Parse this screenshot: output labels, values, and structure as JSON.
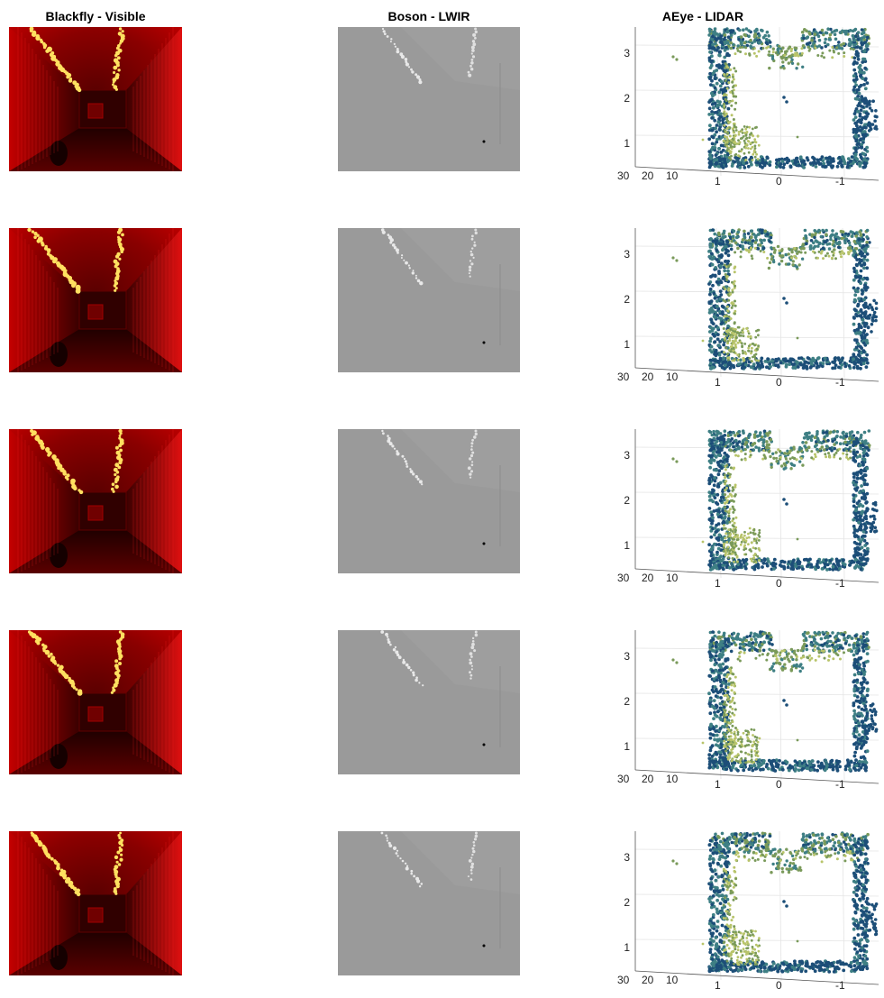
{
  "columns": [
    {
      "title": "Blackfly - Visible"
    },
    {
      "title": "Boson - LWIR"
    },
    {
      "title": "AEye - LIDAR"
    }
  ],
  "lidar_axes": {
    "z_ticks": [
      "3",
      "2",
      "1"
    ],
    "depth_ticks": [
      "30",
      "20",
      "10"
    ],
    "lateral_ticks": [
      "1",
      "0",
      "-1"
    ]
  },
  "colors": {
    "visible_dark": "#1a0000",
    "visible_red": "#d40000",
    "visible_glow": "#ffe060",
    "lwir_gray": "#9a9a9a",
    "lidar_navy": "#1c4e78",
    "lidar_teal": "#3e7f84",
    "lidar_olive": "#7a9a5a",
    "lidar_yellow": "#b8c46a"
  },
  "rows": [
    {
      "index": 1
    },
    {
      "index": 2
    },
    {
      "index": 3
    },
    {
      "index": 4
    },
    {
      "index": 5
    }
  ]
}
